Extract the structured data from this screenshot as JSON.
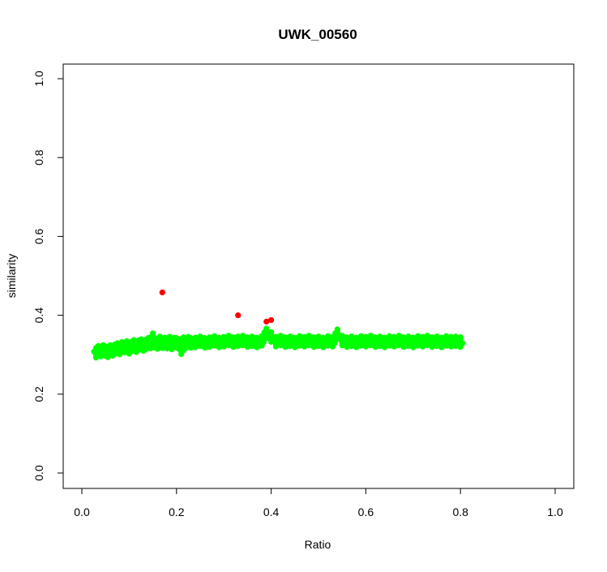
{
  "chart_data": {
    "type": "scatter",
    "title": "UWK_00560",
    "xlabel": "Ratio",
    "ylabel": "similarity",
    "xlim": [
      0,
      1
    ],
    "ylim": [
      0,
      1
    ],
    "x_ticks": [
      "0.0",
      "0.2",
      "0.4",
      "0.6",
      "0.8",
      "1.0"
    ],
    "y_ticks": [
      "0.0",
      "0.2",
      "0.4",
      "0.6",
      "0.8",
      "1.0"
    ],
    "grid": false,
    "series": [
      {
        "color": "#00ff00",
        "description": "dense band of points, x from 0.03 to 0.80",
        "points": [
          [
            0.03,
            0.305
          ],
          [
            0.035,
            0.31
          ],
          [
            0.04,
            0.308
          ],
          [
            0.045,
            0.312
          ],
          [
            0.05,
            0.309
          ],
          [
            0.055,
            0.306
          ],
          [
            0.06,
            0.312
          ],
          [
            0.065,
            0.31
          ],
          [
            0.07,
            0.314
          ],
          [
            0.075,
            0.317
          ],
          [
            0.08,
            0.313
          ],
          [
            0.085,
            0.32
          ],
          [
            0.09,
            0.318
          ],
          [
            0.095,
            0.322
          ],
          [
            0.1,
            0.315
          ],
          [
            0.105,
            0.321
          ],
          [
            0.11,
            0.325
          ],
          [
            0.115,
            0.319
          ],
          [
            0.12,
            0.324
          ],
          [
            0.125,
            0.327
          ],
          [
            0.13,
            0.322
          ],
          [
            0.135,
            0.326
          ],
          [
            0.14,
            0.33
          ],
          [
            0.145,
            0.328
          ],
          [
            0.15,
            0.342
          ],
          [
            0.155,
            0.33
          ],
          [
            0.16,
            0.327
          ],
          [
            0.165,
            0.334
          ],
          [
            0.17,
            0.329
          ],
          [
            0.175,
            0.331
          ],
          [
            0.18,
            0.328
          ],
          [
            0.185,
            0.333
          ],
          [
            0.19,
            0.326
          ],
          [
            0.195,
            0.331
          ],
          [
            0.2,
            0.33
          ],
          [
            0.205,
            0.327
          ],
          [
            0.21,
            0.314
          ],
          [
            0.215,
            0.332
          ],
          [
            0.22,
            0.329
          ],
          [
            0.225,
            0.333
          ],
          [
            0.23,
            0.33
          ],
          [
            0.24,
            0.331
          ],
          [
            0.25,
            0.334
          ],
          [
            0.26,
            0.33
          ],
          [
            0.27,
            0.332
          ],
          [
            0.28,
            0.335
          ],
          [
            0.29,
            0.331
          ],
          [
            0.3,
            0.333
          ],
          [
            0.31,
            0.336
          ],
          [
            0.32,
            0.332
          ],
          [
            0.33,
            0.334
          ],
          [
            0.34,
            0.336
          ],
          [
            0.35,
            0.332
          ],
          [
            0.36,
            0.334
          ],
          [
            0.37,
            0.331
          ],
          [
            0.38,
            0.335
          ],
          [
            0.39,
            0.354
          ],
          [
            0.4,
            0.345
          ],
          [
            0.41,
            0.333
          ],
          [
            0.42,
            0.336
          ],
          [
            0.43,
            0.332
          ],
          [
            0.44,
            0.334
          ],
          [
            0.45,
            0.331
          ],
          [
            0.46,
            0.335
          ],
          [
            0.47,
            0.333
          ],
          [
            0.48,
            0.336
          ],
          [
            0.49,
            0.332
          ],
          [
            0.5,
            0.334
          ],
          [
            0.51,
            0.331
          ],
          [
            0.52,
            0.335
          ],
          [
            0.53,
            0.333
          ],
          [
            0.54,
            0.352
          ],
          [
            0.55,
            0.336
          ],
          [
            0.56,
            0.332
          ],
          [
            0.57,
            0.334
          ],
          [
            0.58,
            0.331
          ],
          [
            0.59,
            0.335
          ],
          [
            0.6,
            0.333
          ],
          [
            0.61,
            0.336
          ],
          [
            0.62,
            0.332
          ],
          [
            0.63,
            0.334
          ],
          [
            0.64,
            0.331
          ],
          [
            0.65,
            0.335
          ],
          [
            0.66,
            0.333
          ],
          [
            0.67,
            0.336
          ],
          [
            0.68,
            0.332
          ],
          [
            0.69,
            0.334
          ],
          [
            0.7,
            0.331
          ],
          [
            0.71,
            0.335
          ],
          [
            0.72,
            0.333
          ],
          [
            0.73,
            0.336
          ],
          [
            0.74,
            0.332
          ],
          [
            0.75,
            0.334
          ],
          [
            0.76,
            0.331
          ],
          [
            0.77,
            0.335
          ],
          [
            0.78,
            0.333
          ],
          [
            0.79,
            0.334
          ],
          [
            0.8,
            0.332
          ]
        ]
      },
      {
        "color": "#ff0000",
        "description": "outlier points",
        "points": [
          [
            0.17,
            0.458
          ],
          [
            0.33,
            0.4
          ],
          [
            0.39,
            0.384
          ],
          [
            0.4,
            0.388
          ]
        ]
      }
    ]
  }
}
